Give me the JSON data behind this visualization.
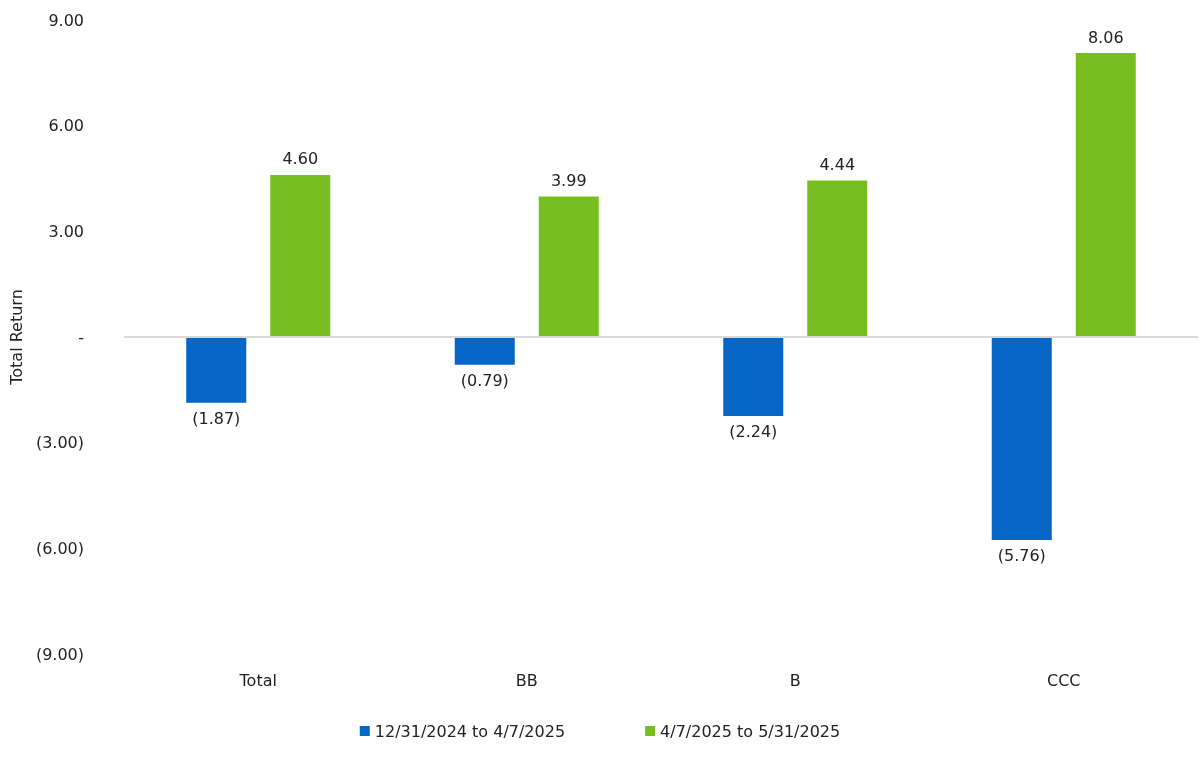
{
  "chart_data": {
    "type": "bar",
    "categories": [
      "Total",
      "BB",
      "B",
      "CCC"
    ],
    "series": [
      {
        "name": "12/31/2024 to 4/7/2025",
        "color": "#0566c6",
        "values": [
          -1.87,
          -0.79,
          -2.24,
          -5.76
        ],
        "value_labels": [
          "(1.87)",
          "(0.79)",
          "(2.24)",
          "(5.76)"
        ]
      },
      {
        "name": "4/7/2025 to 5/31/2025",
        "color": "#78be20",
        "values": [
          4.6,
          3.99,
          4.44,
          8.06
        ],
        "value_labels": [
          "4.60",
          "3.99",
          "4.44",
          "8.06"
        ]
      }
    ],
    "ylabel": "Total Return",
    "ylim": [
      -9,
      9
    ],
    "yticks": [
      {
        "value": -9,
        "label": "(9.00)"
      },
      {
        "value": -6,
        "label": "(6.00)"
      },
      {
        "value": -3,
        "label": "(3.00)"
      },
      {
        "value": 0,
        "label": "-"
      },
      {
        "value": 3,
        "label": "3.00"
      },
      {
        "value": 6,
        "label": "6.00"
      },
      {
        "value": 9,
        "label": "9.00"
      }
    ],
    "grid": false,
    "ref_lines": [
      {
        "axis": "y",
        "value": 0,
        "color": "#d9d9d9"
      }
    ],
    "legend": "bottom"
  }
}
